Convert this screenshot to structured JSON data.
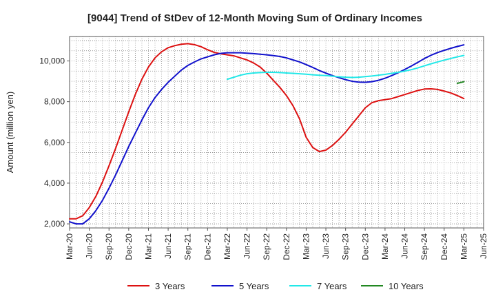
{
  "chart_data": {
    "type": "line",
    "title": "[9044]  Trend of StDev of 12-Month Moving Sum of Ordinary Incomes",
    "ylabel": "Amount (million yen)",
    "xlabel": "",
    "ylim": [
      1800,
      11200
    ],
    "y_ticks": [
      2000,
      4000,
      6000,
      8000,
      10000
    ],
    "y_tick_labels": [
      "2,000",
      "4,000",
      "6,000",
      "8,000",
      "10,000"
    ],
    "x_ticks": [
      "Mar-20",
      "Jun-20",
      "Sep-20",
      "Dec-20",
      "Mar-21",
      "Jun-21",
      "Sep-21",
      "Dec-21",
      "Mar-22",
      "Jun-22",
      "Sep-22",
      "Dec-22",
      "Mar-23",
      "Jun-23",
      "Sep-23",
      "Dec-23",
      "Mar-24",
      "Jun-24",
      "Sep-24",
      "Dec-24",
      "Mar-25",
      "Jun-25"
    ],
    "x_range": [
      "Mar-20",
      "Jun-25"
    ],
    "grid": true,
    "legend_position": "bottom",
    "series": [
      {
        "name": "3 Years",
        "color": "#dd1111",
        "x": [
          "Mar-20",
          "Apr-20",
          "May-20",
          "Jun-20",
          "Jul-20",
          "Aug-20",
          "Sep-20",
          "Oct-20",
          "Nov-20",
          "Dec-20",
          "Jan-21",
          "Feb-21",
          "Mar-21",
          "Apr-21",
          "May-21",
          "Jun-21",
          "Jul-21",
          "Aug-21",
          "Sep-21",
          "Oct-21",
          "Nov-21",
          "Dec-21",
          "Jan-22",
          "Feb-22",
          "Mar-22",
          "Apr-22",
          "May-22",
          "Jun-22",
          "Jul-22",
          "Aug-22",
          "Sep-22",
          "Oct-22",
          "Nov-22",
          "Dec-22",
          "Jan-23",
          "Feb-23",
          "Mar-23",
          "Apr-23",
          "May-23",
          "Jun-23",
          "Jul-23",
          "Aug-23",
          "Sep-23",
          "Oct-23",
          "Nov-23",
          "Dec-23",
          "Jan-24",
          "Feb-24",
          "Mar-24",
          "Apr-24",
          "May-24",
          "Jun-24",
          "Jul-24",
          "Aug-24",
          "Sep-24",
          "Oct-24",
          "Nov-24",
          "Dec-24",
          "Jan-25",
          "Feb-25",
          "Mar-25"
        ],
        "values": [
          2250,
          2250,
          2400,
          2800,
          3350,
          4050,
          4850,
          5700,
          6600,
          7500,
          8350,
          9100,
          9700,
          10150,
          10450,
          10650,
          10750,
          10820,
          10850,
          10800,
          10700,
          10550,
          10420,
          10350,
          10300,
          10250,
          10150,
          10050,
          9900,
          9700,
          9400,
          9050,
          8700,
          8300,
          7800,
          7150,
          6250,
          5750,
          5550,
          5620,
          5850,
          6150,
          6500,
          6900,
          7300,
          7700,
          7950,
          8050,
          8100,
          8150,
          8250,
          8350,
          8450,
          8550,
          8620,
          8630,
          8600,
          8520,
          8430,
          8300,
          8150
        ]
      },
      {
        "name": "5 Years",
        "color": "#1111cc",
        "x": [
          "Mar-20",
          "Apr-20",
          "May-20",
          "Jun-20",
          "Jul-20",
          "Aug-20",
          "Sep-20",
          "Oct-20",
          "Nov-20",
          "Dec-20",
          "Jan-21",
          "Feb-21",
          "Mar-21",
          "Apr-21",
          "May-21",
          "Jun-21",
          "Jul-21",
          "Aug-21",
          "Sep-21",
          "Oct-21",
          "Nov-21",
          "Dec-21",
          "Jan-22",
          "Feb-22",
          "Mar-22",
          "Apr-22",
          "May-22",
          "Jun-22",
          "Jul-22",
          "Aug-22",
          "Sep-22",
          "Oct-22",
          "Nov-22",
          "Dec-22",
          "Jan-23",
          "Feb-23",
          "Mar-23",
          "Apr-23",
          "May-23",
          "Jun-23",
          "Jul-23",
          "Aug-23",
          "Sep-23",
          "Oct-23",
          "Nov-23",
          "Dec-23",
          "Jan-24",
          "Feb-24",
          "Mar-24",
          "Apr-24",
          "May-24",
          "Jun-24",
          "Jul-24",
          "Aug-24",
          "Sep-24",
          "Oct-24",
          "Nov-24",
          "Dec-24",
          "Jan-25",
          "Feb-25",
          "Mar-25"
        ],
        "values": [
          2100,
          2000,
          2000,
          2250,
          2650,
          3150,
          3750,
          4400,
          5100,
          5800,
          6450,
          7100,
          7700,
          8200,
          8600,
          8950,
          9250,
          9550,
          9780,
          9950,
          10100,
          10200,
          10300,
          10370,
          10400,
          10400,
          10400,
          10380,
          10360,
          10330,
          10300,
          10260,
          10220,
          10150,
          10050,
          9950,
          9820,
          9680,
          9530,
          9400,
          9280,
          9180,
          9080,
          9000,
          8960,
          8950,
          8980,
          9050,
          9150,
          9280,
          9420,
          9580,
          9750,
          9930,
          10120,
          10280,
          10410,
          10520,
          10620,
          10710,
          10790
        ]
      },
      {
        "name": "7 Years",
        "color": "#22e8e8",
        "x": [
          "Mar-22",
          "Apr-22",
          "May-22",
          "Jun-22",
          "Jul-22",
          "Aug-22",
          "Sep-22",
          "Oct-22",
          "Nov-22",
          "Dec-22",
          "Jan-23",
          "Feb-23",
          "Mar-23",
          "Apr-23",
          "May-23",
          "Jun-23",
          "Jul-23",
          "Aug-23",
          "Sep-23",
          "Oct-23",
          "Nov-23",
          "Dec-23",
          "Jan-24",
          "Feb-24",
          "Mar-24",
          "Apr-24",
          "May-24",
          "Jun-24",
          "Jul-24",
          "Aug-24",
          "Sep-24",
          "Oct-24",
          "Nov-24",
          "Dec-24",
          "Jan-25",
          "Feb-25",
          "Mar-25"
        ],
        "values": [
          9100,
          9200,
          9300,
          9370,
          9410,
          9430,
          9440,
          9440,
          9430,
          9410,
          9390,
          9370,
          9350,
          9320,
          9300,
          9280,
          9250,
          9220,
          9200,
          9190,
          9200,
          9230,
          9260,
          9300,
          9340,
          9390,
          9440,
          9500,
          9570,
          9660,
          9760,
          9860,
          9950,
          10040,
          10120,
          10200,
          10270
        ]
      },
      {
        "name": "10 Years",
        "color": "#228822",
        "x": [
          "Feb-25",
          "Mar-25"
        ],
        "values": [
          8900,
          8980
        ]
      }
    ]
  }
}
